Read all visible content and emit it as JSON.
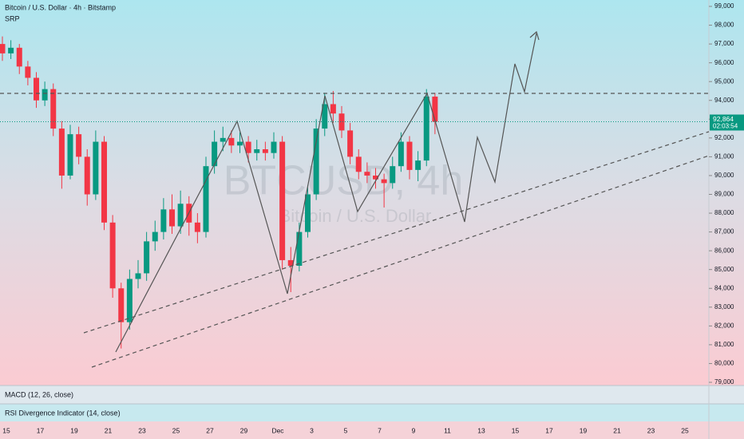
{
  "chart_data": {
    "type": "candlestick",
    "title": "Bitcoin / U.S. Dollar · 4h · Bitstamp",
    "indicator": "SRP",
    "watermark": "BTCUSD, 4h",
    "watermark_subtitle": "Bitcoin / U.S. Dollar",
    "panes": [
      "MACD (12, 26, close)",
      "RSI Divergence Indicator (14, close)"
    ],
    "x_labels": [
      "15",
      "17",
      "19",
      "21",
      "23",
      "25",
      "27",
      "29",
      "Dec",
      "3",
      "5",
      "7",
      "9",
      "11",
      "13",
      "15",
      "17",
      "19",
      "21",
      "23",
      "25"
    ],
    "up_color": "#089981",
    "down_color": "#f23645",
    "ylim": [
      78830,
      99340
    ],
    "yticks": [
      {
        "value": 79000,
        "label": "79,000"
      },
      {
        "value": 80000,
        "label": "80,000"
      },
      {
        "value": 81000,
        "label": "81,000"
      },
      {
        "value": 82000,
        "label": "82,000"
      },
      {
        "value": 83000,
        "label": "83,000"
      },
      {
        "value": 84000,
        "label": "84,000"
      },
      {
        "value": 85000,
        "label": "85,000"
      },
      {
        "value": 86000,
        "label": "86,000"
      },
      {
        "value": 87000,
        "label": "87,000"
      },
      {
        "value": 88000,
        "label": "88,000"
      },
      {
        "value": 89000,
        "label": "89,000"
      },
      {
        "value": 90000,
        "label": "90,000"
      },
      {
        "value": 91000,
        "label": "91,000"
      },
      {
        "value": 92000,
        "label": "92,000"
      },
      {
        "value": 93000,
        "label": "93,000"
      },
      {
        "value": 94000,
        "label": "94,000"
      },
      {
        "value": 95000,
        "label": "95,000"
      },
      {
        "value": 96000,
        "label": "96,000"
      },
      {
        "value": 97000,
        "label": "97,000"
      },
      {
        "value": 98000,
        "label": "98,000"
      },
      {
        "value": 99000,
        "label": "99,000"
      }
    ],
    "last_price": {
      "value": 92864,
      "label": "92,864"
    },
    "countdown": "02:03:54",
    "open": [
      97000,
      96500,
      96800,
      95800,
      95200,
      94000,
      94600,
      92500,
      90000,
      92200,
      91000,
      89000,
      91800,
      87500,
      84000,
      82200,
      84500,
      84800,
      86500,
      87000,
      88200,
      87300,
      88500,
      87500,
      87000,
      90500,
      91800,
      92000,
      91600,
      91800,
      91200,
      91400,
      91200,
      91800,
      85500,
      85200,
      87000,
      89000,
      92500,
      93800,
      93300,
      92400,
      91000,
      90200,
      90000,
      89800,
      89600,
      90500,
      91800,
      90300,
      90800,
      94200
    ],
    "high": [
      97400,
      97200,
      97000,
      96100,
      95500,
      95000,
      94900,
      92900,
      92700,
      92600,
      91400,
      92400,
      92100,
      87900,
      84300,
      85000,
      85500,
      87000,
      87600,
      88800,
      89000,
      89200,
      88900,
      88000,
      91000,
      92400,
      92600,
      92400,
      92300,
      92100,
      91900,
      91800,
      92300,
      92100,
      86200,
      87500,
      89500,
      93000,
      94400,
      94500,
      93700,
      92800,
      91400,
      90700,
      90400,
      90100,
      91000,
      92300,
      92100,
      91300,
      94600,
      94400
    ],
    "low": [
      96100,
      96200,
      95400,
      94800,
      93600,
      93700,
      92100,
      89300,
      89800,
      90600,
      88400,
      88700,
      87100,
      83500,
      80800,
      81800,
      84000,
      84400,
      86000,
      86600,
      86900,
      86900,
      86800,
      86400,
      86700,
      90100,
      91300,
      91200,
      91200,
      90700,
      90800,
      90800,
      90900,
      85000,
      83800,
      84900,
      86700,
      88700,
      92100,
      92800,
      92000,
      90600,
      89800,
      89600,
      89300,
      88300,
      89300,
      90200,
      89800,
      89700,
      90500,
      92200
    ],
    "close": [
      96500,
      96800,
      95800,
      95200,
      94000,
      94600,
      92500,
      90000,
      92200,
      91000,
      89000,
      91800,
      87500,
      84000,
      82200,
      84500,
      84800,
      86500,
      87000,
      88200,
      87300,
      88500,
      87500,
      87000,
      90500,
      91800,
      92000,
      91600,
      91800,
      91200,
      91400,
      91200,
      91800,
      85500,
      85200,
      87000,
      89000,
      92500,
      93800,
      93300,
      92400,
      91000,
      90200,
      90000,
      89800,
      89600,
      90500,
      91800,
      90300,
      90800,
      94200,
      92864
    ]
  }
}
